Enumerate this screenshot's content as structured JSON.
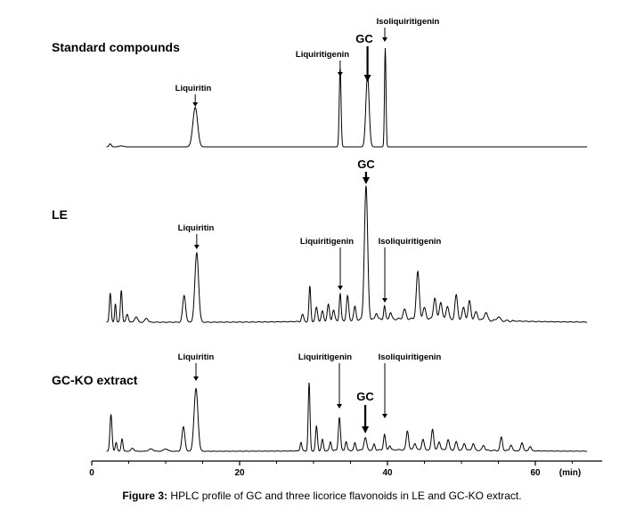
{
  "chart_data": {
    "type": "line",
    "x_unit": "(min)",
    "x_range": [
      0,
      69
    ],
    "x_ticks": [
      0,
      20,
      40,
      60
    ],
    "panels": [
      {
        "name": "Standard compounds",
        "peaks": [
          {
            "x": 2.5,
            "h": 0.03,
            "w": 0.15
          },
          {
            "x": 4.0,
            "h": 0.01,
            "w": 0.3
          },
          {
            "x": 14.0,
            "h": 0.4,
            "w": 0.32,
            "label": "Liquiritin",
            "arrow": "thin"
          },
          {
            "x": 33.6,
            "h": 0.8,
            "w": 0.12,
            "label": "Liquiritigenin",
            "arrow": "thin"
          },
          {
            "x": 37.3,
            "h": 0.73,
            "w": 0.22,
            "label": "GC",
            "arrow": "bold"
          },
          {
            "x": 39.7,
            "h": 1.0,
            "w": 0.1,
            "label": "Isoliquiritigenin",
            "arrow": "thin"
          }
        ]
      },
      {
        "name": "LE",
        "peaks": [
          {
            "x": 2.5,
            "h": 0.22,
            "w": 0.12
          },
          {
            "x": 3.2,
            "h": 0.14,
            "w": 0.1
          },
          {
            "x": 4.0,
            "h": 0.24,
            "w": 0.12
          },
          {
            "x": 4.8,
            "h": 0.06,
            "w": 0.15
          },
          {
            "x": 6.0,
            "h": 0.04,
            "w": 0.2
          },
          {
            "x": 7.4,
            "h": 0.03,
            "w": 0.2
          },
          {
            "x": 12.5,
            "h": 0.2,
            "w": 0.2
          },
          {
            "x": 14.2,
            "h": 0.52,
            "w": 0.25,
            "label": "Liquiritin",
            "arrow": "thin"
          },
          {
            "x": 28.5,
            "h": 0.05,
            "w": 0.15
          },
          {
            "x": 29.5,
            "h": 0.26,
            "w": 0.12
          },
          {
            "x": 30.4,
            "h": 0.1,
            "w": 0.15
          },
          {
            "x": 31.2,
            "h": 0.07,
            "w": 0.15
          },
          {
            "x": 32.0,
            "h": 0.12,
            "w": 0.15
          },
          {
            "x": 32.7,
            "h": 0.08,
            "w": 0.15
          },
          {
            "x": 33.6,
            "h": 0.2,
            "w": 0.12,
            "label": "Liquiritigenin",
            "arrow": "thin"
          },
          {
            "x": 34.6,
            "h": 0.18,
            "w": 0.15
          },
          {
            "x": 35.6,
            "h": 0.1,
            "w": 0.15
          },
          {
            "x": 37.1,
            "h": 1.0,
            "w": 0.22,
            "label": "GC",
            "arrow": "bold"
          },
          {
            "x": 38.5,
            "h": 0.05,
            "w": 0.15
          },
          {
            "x": 39.6,
            "h": 0.1,
            "w": 0.12,
            "label": "Isoliquiritigenin",
            "arrow": "thin"
          },
          {
            "x": 40.4,
            "h": 0.05,
            "w": 0.15
          },
          {
            "x": 42.3,
            "h": 0.07,
            "w": 0.2
          },
          {
            "x": 44.1,
            "h": 0.35,
            "w": 0.2
          },
          {
            "x": 45.0,
            "h": 0.08,
            "w": 0.2
          },
          {
            "x": 46.4,
            "h": 0.16,
            "w": 0.18
          },
          {
            "x": 47.2,
            "h": 0.13,
            "w": 0.18
          },
          {
            "x": 48.1,
            "h": 0.1,
            "w": 0.18
          },
          {
            "x": 49.3,
            "h": 0.18,
            "w": 0.18
          },
          {
            "x": 50.3,
            "h": 0.09,
            "w": 0.18
          },
          {
            "x": 51.1,
            "h": 0.14,
            "w": 0.18
          },
          {
            "x": 52.0,
            "h": 0.06,
            "w": 0.2
          },
          {
            "x": 53.3,
            "h": 0.06,
            "w": 0.2
          },
          {
            "x": 55.0,
            "h": 0.03,
            "w": 0.2
          }
        ]
      },
      {
        "name": "GC-KO extract",
        "peaks": [
          {
            "x": 2.6,
            "h": 0.5,
            "w": 0.14
          },
          {
            "x": 3.3,
            "h": 0.12,
            "w": 0.12
          },
          {
            "x": 4.1,
            "h": 0.17,
            "w": 0.12
          },
          {
            "x": 5.5,
            "h": 0.04,
            "w": 0.2
          },
          {
            "x": 8.0,
            "h": 0.03,
            "w": 0.3
          },
          {
            "x": 10.0,
            "h": 0.03,
            "w": 0.3
          },
          {
            "x": 12.4,
            "h": 0.33,
            "w": 0.2
          },
          {
            "x": 14.1,
            "h": 0.85,
            "w": 0.26,
            "label": "Liquiritin",
            "arrow": "thin"
          },
          {
            "x": 28.3,
            "h": 0.12,
            "w": 0.12
          },
          {
            "x": 29.4,
            "h": 0.92,
            "w": 0.12
          },
          {
            "x": 30.4,
            "h": 0.33,
            "w": 0.13
          },
          {
            "x": 31.2,
            "h": 0.15,
            "w": 0.13
          },
          {
            "x": 32.3,
            "h": 0.12,
            "w": 0.13
          },
          {
            "x": 33.5,
            "h": 0.45,
            "w": 0.14,
            "label": "Liquiritigenin",
            "arrow": "thin"
          },
          {
            "x": 34.4,
            "h": 0.12,
            "w": 0.13
          },
          {
            "x": 35.6,
            "h": 0.1,
            "w": 0.13
          },
          {
            "x": 37.0,
            "h": 0.17,
            "w": 0.18,
            "label": "GC",
            "arrow": "bold"
          },
          {
            "x": 38.2,
            "h": 0.08,
            "w": 0.13
          },
          {
            "x": 39.6,
            "h": 0.21,
            "w": 0.14,
            "label": "Isoliquiritigenin",
            "arrow": "thin"
          },
          {
            "x": 40.3,
            "h": 0.06,
            "w": 0.13
          },
          {
            "x": 42.7,
            "h": 0.26,
            "w": 0.16
          },
          {
            "x": 43.7,
            "h": 0.09,
            "w": 0.16
          },
          {
            "x": 44.8,
            "h": 0.14,
            "w": 0.16
          },
          {
            "x": 46.1,
            "h": 0.28,
            "w": 0.16
          },
          {
            "x": 47.0,
            "h": 0.11,
            "w": 0.16
          },
          {
            "x": 48.2,
            "h": 0.14,
            "w": 0.16
          },
          {
            "x": 49.3,
            "h": 0.11,
            "w": 0.16
          },
          {
            "x": 50.4,
            "h": 0.09,
            "w": 0.16
          },
          {
            "x": 51.6,
            "h": 0.09,
            "w": 0.16
          },
          {
            "x": 53.0,
            "h": 0.07,
            "w": 0.16
          },
          {
            "x": 55.4,
            "h": 0.18,
            "w": 0.16
          },
          {
            "x": 56.7,
            "h": 0.08,
            "w": 0.16
          },
          {
            "x": 58.2,
            "h": 0.11,
            "w": 0.16
          },
          {
            "x": 59.3,
            "h": 0.06,
            "w": 0.16
          }
        ]
      }
    ]
  },
  "caption": {
    "label": "Figure 3:",
    "text": " HPLC profile of GC and three licorice flavonoids in LE and GC-KO extract."
  }
}
